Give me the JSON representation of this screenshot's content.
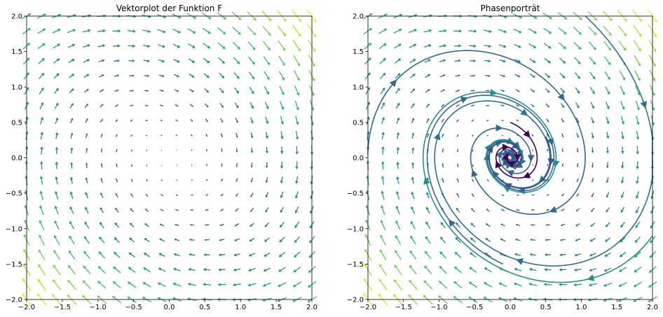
{
  "chart_data": [
    {
      "type": "quiver",
      "title": "Vektorplot der Funktion F",
      "xlabel": "",
      "ylabel": "",
      "xlim": [
        -2.0,
        2.0
      ],
      "ylim": [
        -2.0,
        2.0
      ],
      "xticks": [
        "−2.0",
        "−1.5",
        "−1.0",
        "−0.5",
        "0.0",
        "0.5",
        "1.0",
        "1.5",
        "2.0"
      ],
      "yticks": [
        "−2.0",
        "−1.5",
        "−1.0",
        "−0.5",
        "0.0",
        "0.5",
        "1.0",
        "1.5",
        "2.0"
      ],
      "grid": false,
      "field": "F(x, y) = (y, −x − 0.4·y)",
      "grid_points": 20,
      "colormap": "viridis (color by magnitude)"
    },
    {
      "type": "streamplot",
      "title": "Phasenporträt",
      "xlabel": "",
      "ylabel": "",
      "xlim": [
        -2.0,
        2.0
      ],
      "ylim": [
        -2.0,
        2.0
      ],
      "xticks": [
        "−2.0",
        "−1.5",
        "−1.0",
        "−0.5",
        "0.0",
        "0.5",
        "1.0",
        "1.5",
        "2.0"
      ],
      "yticks": [
        "−2.0",
        "−1.5",
        "−1.0",
        "−0.5",
        "0.0",
        "0.5",
        "1.0",
        "1.5",
        "2.0"
      ],
      "grid": false,
      "field": "F(x, y) = (y, −x − 0.4·y)",
      "grid_points": 20,
      "trajectories": [
        {
          "start": [
            -2.0,
            0.1
          ],
          "color": "#31688e"
        },
        {
          "start": [
            -0.1,
            -1.5
          ],
          "color": "#31688e"
        },
        {
          "start": [
            1.0,
            2.05
          ],
          "color": "#2c728e"
        },
        {
          "start": [
            2.0,
            -1.1
          ],
          "color": "#21918c"
        },
        {
          "start": [
            0.5,
            0.3
          ],
          "color": "#3b528b"
        },
        {
          "start": [
            0.0,
            0.5
          ],
          "color": "#440154"
        }
      ],
      "colors": {
        "low": "#440154",
        "mid": "#21918c",
        "high": "#fde725"
      }
    }
  ]
}
